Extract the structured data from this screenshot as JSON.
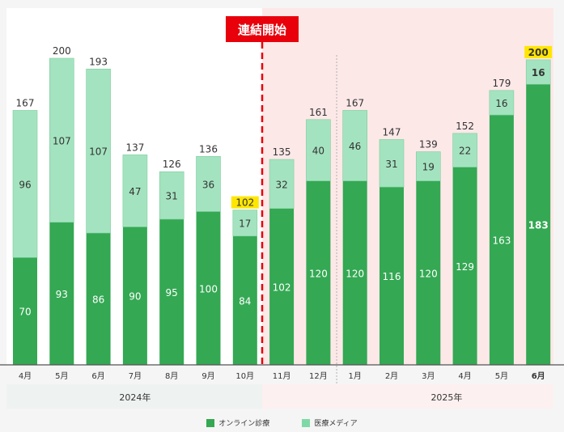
{
  "chart_data": {
    "type": "bar",
    "stacked": true,
    "annotation": "連結開始",
    "categories": [
      "4月",
      "5月",
      "6月",
      "7月",
      "8月",
      "9月",
      "10月",
      "11月",
      "12月",
      "1月",
      "2月",
      "3月",
      "4月",
      "5月",
      "6月"
    ],
    "years": [
      {
        "label": "2024年",
        "range": [
          0,
          6
        ]
      },
      {
        "label": "2025年",
        "range": [
          9,
          14
        ]
      }
    ],
    "series": [
      {
        "name": "オンライン診療",
        "color": "#34a853",
        "values": [
          70,
          93,
          86,
          90,
          95,
          100,
          84,
          102,
          120,
          120,
          116,
          120,
          129,
          163,
          183
        ]
      },
      {
        "name": "医療メディア",
        "color": "#a4e3c0",
        "values": [
          96,
          107,
          107,
          47,
          31,
          36,
          17,
          32,
          40,
          46,
          31,
          19,
          22,
          16,
          16
        ]
      }
    ],
    "totals": [
      167,
      200,
      193,
      137,
      126,
      136,
      102,
      135,
      161,
      167,
      147,
      139,
      152,
      179,
      200
    ],
    "highlighted_totals": [
      6,
      14
    ],
    "bold_category": 14,
    "colors": {
      "accent": "#e8000b",
      "highlight": "#ffe600",
      "shade": "#fde8e8"
    }
  }
}
